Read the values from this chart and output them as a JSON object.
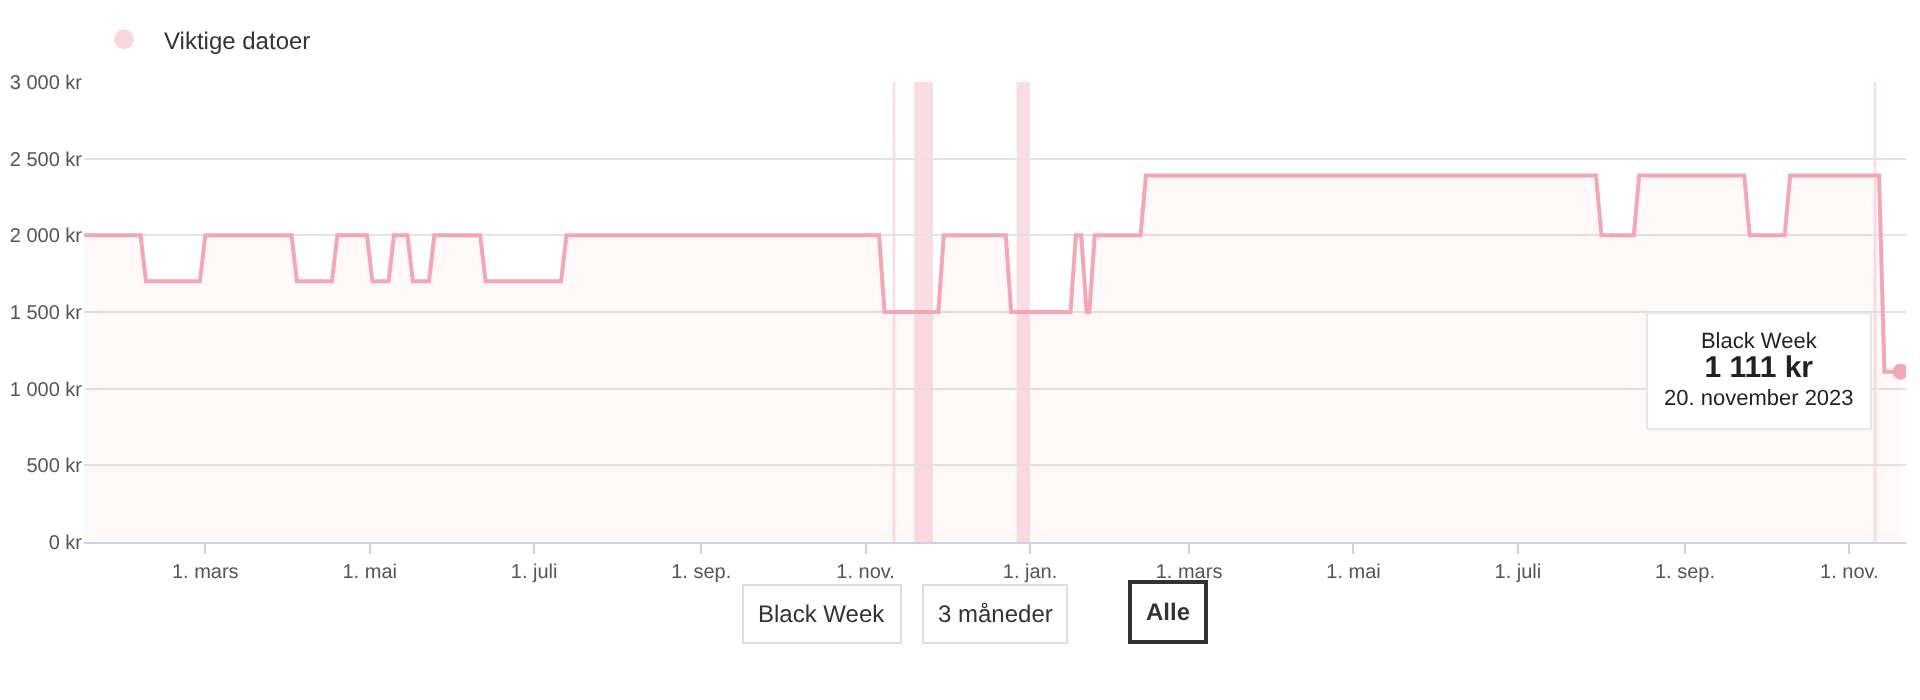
{
  "chart_data": {
    "type": "area",
    "x": [
      "2022-01-15",
      "2022-02-05",
      "2022-02-07",
      "2022-02-27",
      "2022-03-01",
      "2022-04-02",
      "2022-04-04",
      "2022-04-17",
      "2022-04-19",
      "2022-04-30",
      "2022-05-02",
      "2022-05-08",
      "2022-05-10",
      "2022-05-15",
      "2022-05-17",
      "2022-05-23",
      "2022-05-25",
      "2022-06-11",
      "2022-06-13",
      "2022-07-11",
      "2022-07-13",
      "2022-11-06",
      "2022-11-08",
      "2022-11-28",
      "2022-11-30",
      "2022-12-23",
      "2022-12-25",
      "2023-01-16",
      "2023-01-18",
      "2023-01-20",
      "2023-01-22",
      "2023-01-23",
      "2023-01-25",
      "2023-02-11",
      "2023-02-13",
      "2023-07-30",
      "2023-08-01",
      "2023-08-13",
      "2023-08-15",
      "2023-09-23",
      "2023-09-25",
      "2023-10-08",
      "2023-10-10",
      "2023-11-12",
      "2023-11-14",
      "2023-11-20"
    ],
    "series": [
      {
        "color": "#f4a6b4",
        "values": [
          2000,
          2000,
          1700,
          1700,
          2000,
          2000,
          1700,
          1700,
          2000,
          2000,
          1700,
          1700,
          2000,
          2000,
          1700,
          1700,
          2000,
          2000,
          1700,
          1700,
          2000,
          2000,
          1500,
          1500,
          2000,
          2000,
          1500,
          1500,
          2000,
          2000,
          1500,
          1500,
          2000,
          2000,
          2390,
          2390,
          2000,
          2000,
          2390,
          2390,
          2000,
          2000,
          2390,
          2390,
          1111,
          1111
        ]
      }
    ],
    "xlim": [
      "2022-01-15",
      "2023-11-22"
    ],
    "xticks": [
      {
        "value": "2022-03-01",
        "label": "1. mars"
      },
      {
        "value": "2022-05-01",
        "label": "1. mai"
      },
      {
        "value": "2022-07-01",
        "label": "1. juli"
      },
      {
        "value": "2022-09-01",
        "label": "1. sep."
      },
      {
        "value": "2022-11-01",
        "label": "1. nov."
      },
      {
        "value": "2023-01-01",
        "label": "1. jan."
      },
      {
        "value": "2023-03-01",
        "label": "1. mars"
      },
      {
        "value": "2023-05-01",
        "label": "1. mai"
      },
      {
        "value": "2023-07-01",
        "label": "1. juli"
      },
      {
        "value": "2023-09-01",
        "label": "1. sep."
      },
      {
        "value": "2023-11-01",
        "label": "1. nov."
      }
    ],
    "ylim": [
      0,
      3000
    ],
    "yticks": [
      {
        "value": 0,
        "label": "0 kr"
      },
      {
        "value": 500,
        "label": "500 kr"
      },
      {
        "value": 1000,
        "label": "1 000 kr"
      },
      {
        "value": 1500,
        "label": "1 500 kr"
      },
      {
        "value": 2000,
        "label": "2 000 kr"
      },
      {
        "value": 2500,
        "label": "2 500 kr"
      },
      {
        "value": 3000,
        "label": "3 000 kr"
      }
    ],
    "grid": "y",
    "legend": "top left",
    "bands": [
      {
        "axis": "x",
        "from": "2022-11-11",
        "to": "2022-11-12",
        "color": "#f9d5dc",
        "label": "Viktige datoer"
      },
      {
        "axis": "x",
        "from": "2022-11-19",
        "to": "2022-11-26",
        "color": "#f9d5dc"
      },
      {
        "axis": "x",
        "from": "2022-12-27",
        "to": "2023-01-01",
        "color": "#f9d5dc"
      },
      {
        "axis": "x",
        "from": "2023-11-10",
        "to": "2023-11-11",
        "color": "#f9d5dc"
      }
    ],
    "annotations": [
      {
        "text": "Black Week\n1 111 kr\n20. november 2023",
        "x": "2023-11-20",
        "y": 1111
      },
      "Black Week",
      "3 måneder",
      "Alle"
    ]
  }
}
